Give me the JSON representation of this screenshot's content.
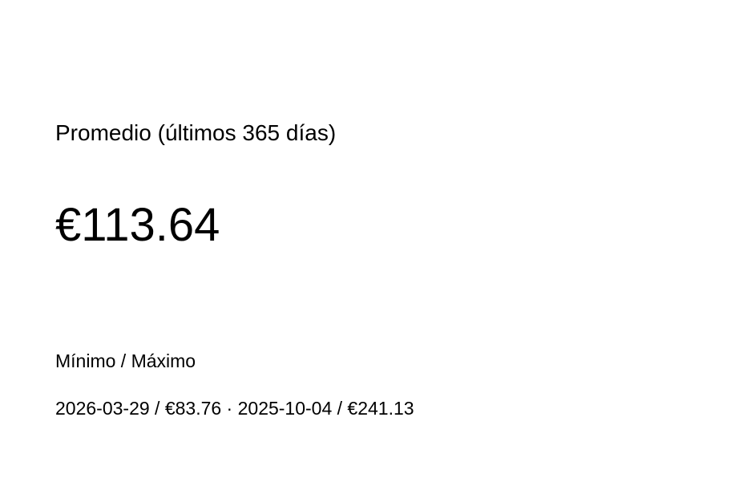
{
  "average": {
    "label": "Promedio (últimos 365 días)",
    "value": "€113.64"
  },
  "min_max": {
    "label": "Mínimo / Máximo",
    "value": "2026-03-29 / €83.76 · 2025-10-04 / €241.13"
  }
}
